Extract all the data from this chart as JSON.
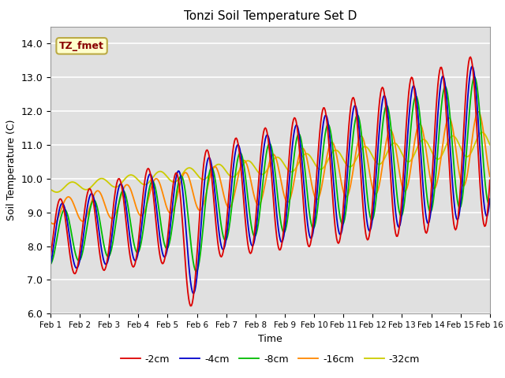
{
  "title": "Tonzi Soil Temperature Set D",
  "xlabel": "Time",
  "ylabel": "Soil Temperature (C)",
  "annotation": "TZ_fmet",
  "ylim": [
    6.0,
    14.5
  ],
  "xlim": [
    0,
    15
  ],
  "xtick_labels": [
    "Feb 1",
    "Feb 2",
    "Feb 3",
    "Feb 4",
    "Feb 5",
    "Feb 6",
    "Feb 7",
    "Feb 8",
    "Feb 9",
    "Feb 10",
    "Feb 11",
    "Feb 12",
    "Feb 13",
    "Feb 14",
    "Feb 15",
    "Feb 16"
  ],
  "ytick_vals": [
    6.0,
    7.0,
    8.0,
    9.0,
    10.0,
    11.0,
    12.0,
    13.0,
    14.0
  ],
  "series_colors": [
    "#dd0000",
    "#0000cc",
    "#00bb00",
    "#ff8800",
    "#cccc00"
  ],
  "series_labels": [
    "-2cm",
    "-4cm",
    "-8cm",
    "-16cm",
    "-32cm"
  ],
  "bg_color": "#e0e0e0",
  "legend_bg": "#ffffcc",
  "legend_border": "#bbaa44"
}
